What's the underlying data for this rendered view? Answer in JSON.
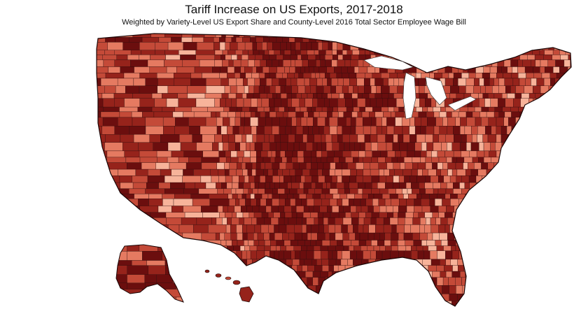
{
  "map": {
    "title": "Tariff Increase on US Exports, 2017-2018",
    "subtitle": "Weighted by Variety-Level US Export Share and County-Level 2016 Total Sector Employee Wage Bill",
    "palette": [
      "#fce6d9",
      "#f7b39a",
      "#e57a61",
      "#c44a38",
      "#96231b",
      "#6b0e0e"
    ],
    "border_color": "#2a0a0a",
    "regions": [
      "Contiguous United States",
      "Alaska",
      "Hawaii"
    ]
  }
}
